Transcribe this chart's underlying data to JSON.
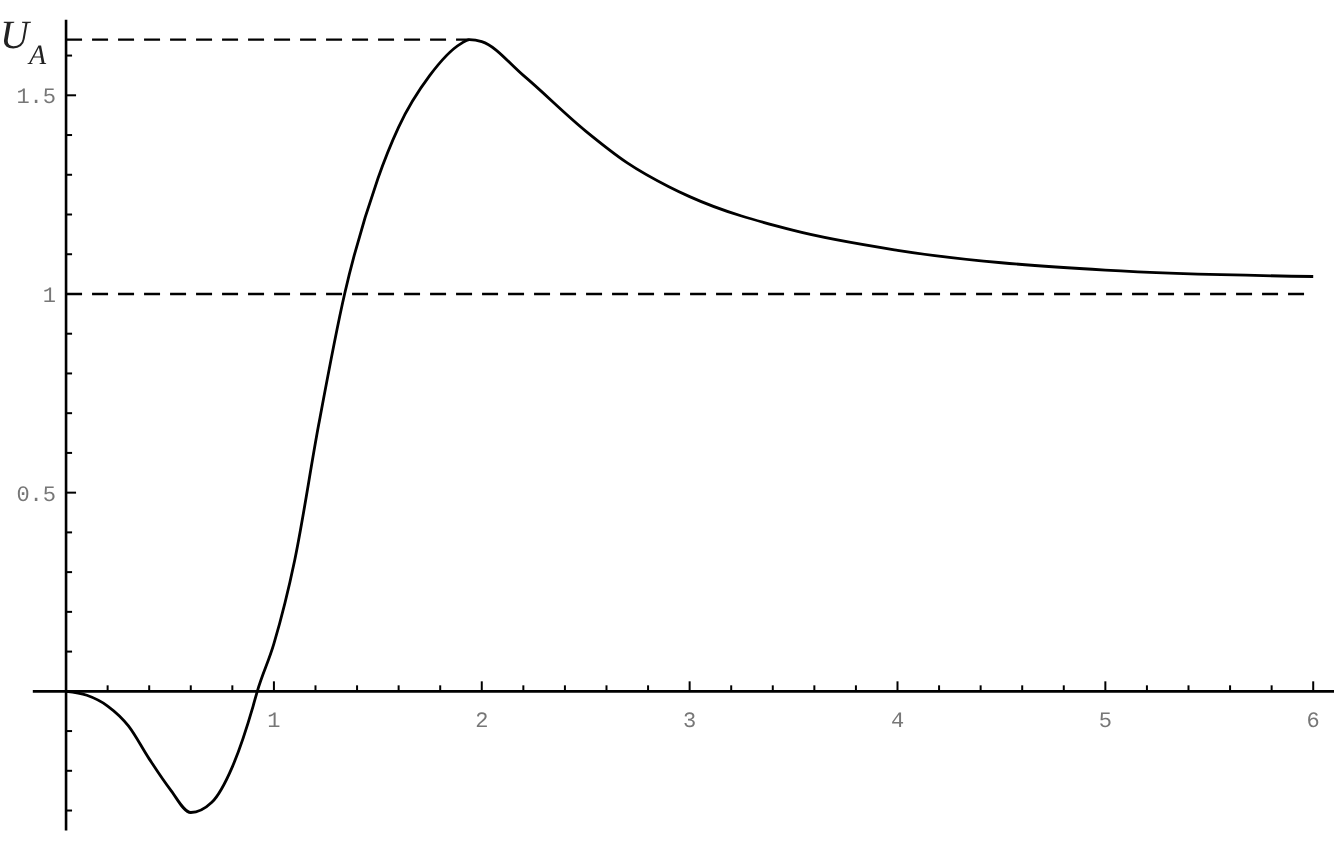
{
  "chart_data": {
    "type": "line",
    "ylabel": "U$_{A}$",
    "x": [
      0,
      0.1,
      0.2,
      0.3,
      0.4,
      0.5,
      0.6,
      0.7,
      0.8,
      0.9,
      0.92,
      1.0,
      1.1,
      1.215,
      1.34,
      1.5,
      1.6,
      1.75,
      1.9,
      1.94,
      2.0,
      2.2,
      2.5,
      2.7,
      2.9,
      3.0,
      3.5,
      4.0,
      5.0,
      6.0
    ],
    "series": [
      {
        "color": "#000000",
        "values": [
          0,
          -0.01,
          -0.037,
          -0.087,
          -0.17,
          -0.246,
          -0.305,
          -0.28,
          -0.19,
          -0.037,
          0,
          0.12,
          0.33,
          0.67,
          1.0,
          1.29,
          1.42,
          1.55,
          1.63,
          1.64,
          1.635,
          1.55,
          1.41,
          1.33,
          1.27,
          1.245,
          1.16,
          1.11,
          1.06,
          1.044
        ]
      }
    ],
    "xlim": [
      -0.16,
      6.1
    ],
    "ylim": [
      -0.35,
      1.69
    ],
    "xticks": [
      {
        "value": 0.2,
        "label": null
      },
      {
        "value": 0.4,
        "label": null
      },
      {
        "value": 0.6,
        "label": null
      },
      {
        "value": 0.8,
        "label": null
      },
      1,
      {
        "value": 1.2,
        "label": null
      },
      {
        "value": 1.4,
        "label": null
      },
      {
        "value": 1.6,
        "label": null
      },
      {
        "value": 1.8,
        "label": null
      },
      2,
      {
        "value": 2.2,
        "label": null
      },
      {
        "value": 2.4,
        "label": null
      },
      {
        "value": 2.6,
        "label": null
      },
      {
        "value": 2.8,
        "label": null
      },
      3,
      {
        "value": 3.2,
        "label": null
      },
      {
        "value": 3.4,
        "label": null
      },
      {
        "value": 3.6,
        "label": null
      },
      {
        "value": 3.8,
        "label": null
      },
      4,
      {
        "value": 4.2,
        "label": null
      },
      {
        "value": 4.4,
        "label": null
      },
      {
        "value": 4.6,
        "label": null
      },
      {
        "value": 4.8,
        "label": null
      },
      5,
      {
        "value": 5.2,
        "label": null
      },
      {
        "value": 5.4,
        "label": null
      },
      {
        "value": 5.6,
        "label": null
      },
      {
        "value": 5.8,
        "label": null
      },
      6
    ],
    "yticks": [
      {
        "value": -0.3,
        "label": null
      },
      {
        "value": -0.2,
        "label": null
      },
      {
        "value": -0.1,
        "label": null
      },
      {
        "value": 0.1,
        "label": null
      },
      {
        "value": 0.2,
        "label": null
      },
      {
        "value": 0.3,
        "label": null
      },
      {
        "value": 0.4,
        "label": null
      },
      {
        "value": 0.5,
        "label": "0.5"
      },
      {
        "value": 0.6,
        "label": null
      },
      {
        "value": 0.7,
        "label": null
      },
      {
        "value": 0.8,
        "label": null
      },
      {
        "value": 0.9,
        "label": null
      },
      1,
      {
        "value": 1.1,
        "label": null
      },
      {
        "value": 1.2,
        "label": null
      },
      {
        "value": 1.3,
        "label": null
      },
      {
        "value": 1.4,
        "label": null
      },
      {
        "value": 1.5,
        "label": "1.5"
      },
      {
        "value": 1.6,
        "label": null
      }
    ],
    "ref_lines": [
      {
        "axis": "y",
        "value": 1,
        "line_style": "dashed"
      },
      {
        "axis": "y",
        "value": 1.64,
        "line_style": "dashed"
      }
    ],
    "line_style": "solid"
  }
}
